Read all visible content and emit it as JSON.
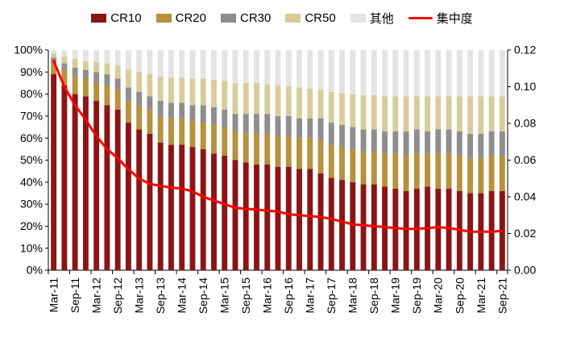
{
  "chart_data": {
    "type": "bar",
    "stacked": true,
    "grid": false,
    "legend_position": "top",
    "categories": [
      "Mar-11",
      "Jun-11",
      "Sep-11",
      "Dec-11",
      "Mar-12",
      "Jun-12",
      "Sep-12",
      "Dec-12",
      "Mar-13",
      "Jun-13",
      "Sep-13",
      "Dec-13",
      "Mar-14",
      "Jun-14",
      "Sep-14",
      "Dec-14",
      "Mar-15",
      "Jun-15",
      "Sep-15",
      "Dec-15",
      "Mar-16",
      "Jun-16",
      "Sep-16",
      "Dec-16",
      "Mar-17",
      "Jun-17",
      "Sep-17",
      "Dec-17",
      "Mar-18",
      "Jun-18",
      "Sep-18",
      "Dec-18",
      "Mar-19",
      "Jun-19",
      "Sep-19",
      "Dec-19",
      "Mar-20",
      "Jun-20",
      "Sep-20",
      "Dec-20",
      "Mar-21",
      "Jun-21",
      "Sep-21"
    ],
    "x_labels_shown": [
      "Mar-11",
      "Sep-11",
      "Mar-12",
      "Sep-12",
      "Mar-13",
      "Sep-13",
      "Mar-14",
      "Sep-14",
      "Mar-15",
      "Sep-15",
      "Mar-16",
      "Sep-16",
      "Mar-17",
      "Sep-17",
      "Mar-18",
      "Sep-18",
      "Mar-19",
      "Sep-19",
      "Mar-20",
      "Sep-20",
      "Mar-21",
      "Sep-21"
    ],
    "series": [
      {
        "name": "CR10",
        "color": "#8B1515",
        "values": [
          89,
          84,
          80,
          79,
          77,
          75,
          73,
          67,
          64,
          62,
          58,
          57,
          57,
          56,
          55,
          53,
          52,
          50,
          49,
          48,
          48,
          47,
          47,
          46,
          46,
          44,
          42,
          41,
          40,
          39,
          39,
          38,
          37,
          36,
          37,
          38,
          37,
          37,
          36,
          35,
          35,
          36,
          36
        ]
      },
      {
        "name": "CR20",
        "color": "#B8913C",
        "values": [
          5,
          7,
          8,
          8,
          8,
          9,
          9,
          10,
          11,
          11,
          12,
          12,
          12,
          12,
          12,
          13,
          13,
          13,
          13,
          14,
          14,
          14,
          14,
          14,
          14,
          15,
          15,
          15,
          15,
          15,
          15,
          15,
          16,
          16,
          16,
          15,
          16,
          16,
          16,
          16,
          16,
          16,
          16
        ]
      },
      {
        "name": "CR30",
        "color": "#8E8E8E",
        "values": [
          2.5,
          3,
          4,
          4,
          5,
          5,
          5,
          6,
          6,
          6,
          7,
          7,
          7,
          7,
          8,
          8,
          8,
          8,
          9,
          9,
          9,
          9,
          9,
          9,
          9,
          10,
          10,
          10,
          10,
          10,
          10,
          10,
          10,
          11,
          11,
          10,
          11,
          11,
          11,
          11,
          11,
          11,
          11
        ]
      },
      {
        "name": "CR50",
        "color": "#D9CC9B",
        "values": [
          2,
          3,
          4,
          4,
          4.5,
          5,
          6,
          8,
          9,
          10,
          11,
          11.5,
          11.5,
          12,
          12,
          12.5,
          13,
          14,
          14,
          14,
          13.5,
          14,
          13.5,
          14,
          13.5,
          13,
          14,
          14.5,
          15,
          15.5,
          15.5,
          16,
          16,
          16,
          15,
          16,
          15,
          15,
          16,
          17,
          17,
          16,
          16
        ]
      },
      {
        "name": "其他",
        "color": "#E4E4E4",
        "values": [
          1.5,
          3,
          4,
          5,
          5.5,
          6,
          7,
          9,
          10,
          11,
          12,
          12.5,
          12.5,
          13,
          13,
          13.5,
          14,
          15,
          15,
          15,
          15.5,
          16,
          16.5,
          17,
          17.5,
          18,
          19,
          19.5,
          20,
          20.5,
          20.5,
          21,
          21,
          21,
          21,
          21,
          21,
          21,
          21,
          21,
          21,
          21,
          21
        ]
      }
    ],
    "line_series": {
      "name": "集中度",
      "color": "#FF0000",
      "axis": "right",
      "values": [
        0.114,
        0.1,
        0.09,
        0.082,
        0.073,
        0.066,
        0.061,
        0.055,
        0.05,
        0.047,
        0.046,
        0.045,
        0.0445,
        0.043,
        0.04,
        0.038,
        0.036,
        0.034,
        0.0335,
        0.033,
        0.0325,
        0.032,
        0.0305,
        0.03,
        0.0295,
        0.029,
        0.028,
        0.0265,
        0.025,
        0.0245,
        0.024,
        0.0235,
        0.023,
        0.0225,
        0.0225,
        0.023,
        0.0235,
        0.023,
        0.022,
        0.021,
        0.021,
        0.021,
        0.0215
      ]
    },
    "left_axis": {
      "min": 0,
      "max": 100,
      "step": 10,
      "tick_labels": [
        "0%",
        "10%",
        "20%",
        "30%",
        "40%",
        "50%",
        "60%",
        "70%",
        "80%",
        "90%",
        "100%"
      ]
    },
    "right_axis": {
      "min": 0,
      "max": 0.12,
      "step": 0.02,
      "tick_labels": [
        "0.00",
        "0.02",
        "0.04",
        "0.06",
        "0.08",
        "0.10",
        "0.12"
      ]
    }
  }
}
